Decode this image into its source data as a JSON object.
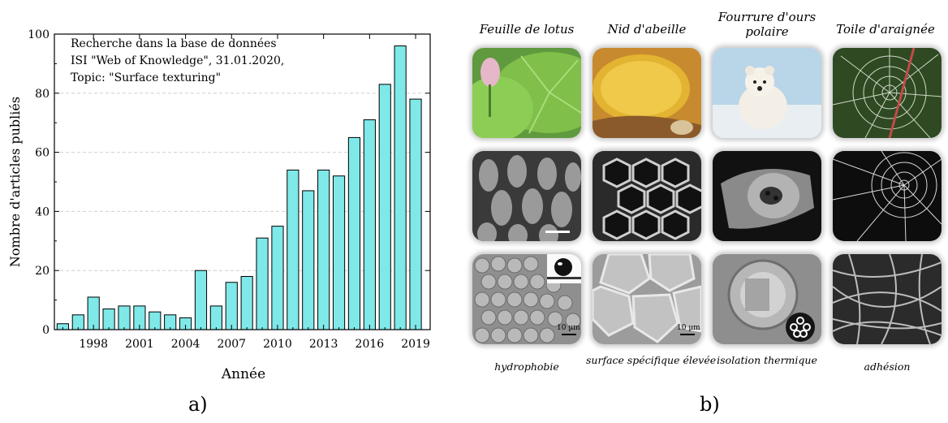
{
  "chart_data": {
    "type": "bar",
    "categories": [
      "1996",
      "1997",
      "1998",
      "1999",
      "2000",
      "2001",
      "2002",
      "2003",
      "2004",
      "2005",
      "2006",
      "2007",
      "2008",
      "2009",
      "2010",
      "2011",
      "2012",
      "2013",
      "2014",
      "2015",
      "2016",
      "2017",
      "2018",
      "2019"
    ],
    "values": [
      2,
      5,
      11,
      7,
      8,
      8,
      6,
      5,
      4,
      20,
      8,
      16,
      18,
      31,
      35,
      54,
      47,
      54,
      52,
      65,
      71,
      83,
      96,
      78
    ],
    "xlabel": "Année",
    "ylabel": "Nombre d'articles publiés",
    "ylim": [
      0,
      100
    ],
    "yticks": [
      0,
      20,
      40,
      60,
      80,
      100
    ],
    "xticks": [
      "1998",
      "2001",
      "2004",
      "2007",
      "2010",
      "2013",
      "2016",
      "2019"
    ],
    "grid": "horizontal dashed",
    "bar_color": "#7fe8e8",
    "annotation": [
      "Recherche dans la base de données",
      "ISI \"Web of Knowledge\", 31.01.2020,",
      "Topic: \"Surface texturing\""
    ]
  },
  "panel_labels": {
    "a": "a)",
    "b": "b)"
  },
  "figure_b": {
    "columns": [
      {
        "title_lines": [
          "Feuille de lotus"
        ],
        "caption": "hydrophobie"
      },
      {
        "title_lines": [
          "Nid d'abeille"
        ],
        "caption": "surface spécifique élevée"
      },
      {
        "title_lines": [
          "Fourrure d'ours",
          "polaire"
        ],
        "caption": "isolation thermique"
      },
      {
        "title_lines": [
          "Toile d'araignée"
        ],
        "caption": "adhésion"
      }
    ],
    "scalebars": {
      "lotus": "10 µm",
      "honeycomb": "10 µm"
    }
  }
}
